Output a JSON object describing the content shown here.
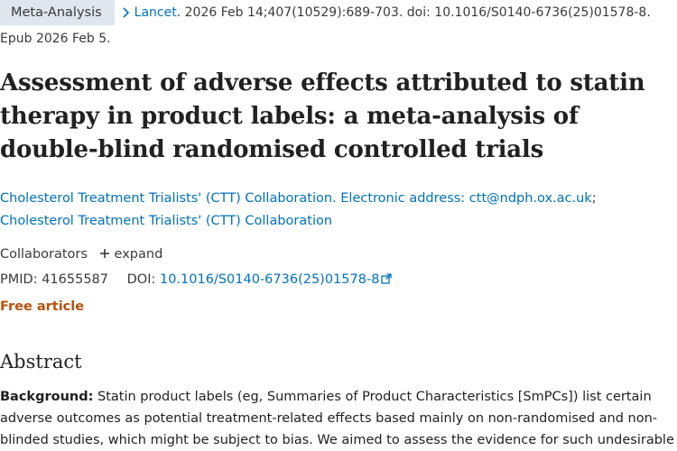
{
  "citation": {
    "badge": "Meta-Analysis",
    "journal": "Lancet",
    "details": ". 2026 Feb 14;407(10529):689-703. doi: 10.1016/S0140-6736(25)01578-8.",
    "epub": "Epub 2026 Feb 5."
  },
  "article": {
    "title": "Assessment of adverse effects attributed to statin therapy in product labels: a meta-analysis of double-blind randomised controlled trials"
  },
  "authors": [
    "Cholesterol Treatment Trialists' (CTT) Collaboration. Electronic address: ctt@ndph.ox.ac.uk",
    "Cholesterol Treatment Trialists' (CTT) Collaboration"
  ],
  "author_separator": ";",
  "collaborators": {
    "label": "Collaborators",
    "expand_label": "expand",
    "expand_icon": "plus-icon"
  },
  "ids": {
    "pmid_label": "PMID: ",
    "pmid": "41655587",
    "doi_label": "DOI: ",
    "doi": "10.1016/S0140-6736(25)01578-8",
    "doi_icon": "external-link-icon"
  },
  "free_article": "Free article",
  "abstract": {
    "heading": "Abstract",
    "background_label": "Background:",
    "background_text": " Statin product labels (eg, Summaries of Product Characteristics [SmPCs]) list certain adverse outcomes as potential treatment-related effects based mainly on non-randomised and non-blinded studies, which might be subject to bias. We aimed to assess the evidence for such undesirable"
  },
  "colors": {
    "link": "#0071bc",
    "free_article": "#b5520c",
    "badge_bg": "#dfe6ee"
  }
}
